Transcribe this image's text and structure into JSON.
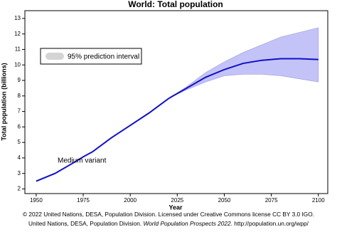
{
  "chart_data": {
    "type": "line",
    "title": "World: Total population",
    "x_label": "Year",
    "y_label": "Total population (billions)",
    "xlim": [
      1944,
      2105
    ],
    "xticks": [
      1950,
      1975,
      2000,
      2025,
      2050,
      2075,
      2100
    ],
    "ylim": [
      1.7,
      13.5
    ],
    "yticks": [
      2,
      3,
      4,
      5,
      6,
      7,
      8,
      9,
      10,
      11,
      12,
      13
    ],
    "x": [
      1950,
      1960,
      1970,
      1975,
      1980,
      1990,
      2000,
      2010,
      2020,
      2022,
      2030,
      2040,
      2050,
      2060,
      2070,
      2080,
      2086,
      2090,
      2100
    ],
    "series": [
      {
        "name": "Medium variant",
        "color": "#1010c8",
        "values": [
          2.5,
          3.0,
          3.7,
          4.07,
          4.4,
          5.3,
          6.1,
          6.9,
          7.8,
          7.95,
          8.5,
          9.2,
          9.7,
          10.1,
          10.3,
          10.4,
          10.4,
          10.4,
          10.35
        ]
      }
    ],
    "band": {
      "name": "95% prediction interval",
      "color": "#b4b4f5",
      "x": [
        2022,
        2030,
        2040,
        2050,
        2060,
        2070,
        2080,
        2090,
        2100
      ],
      "lower": [
        7.95,
        8.4,
        8.9,
        9.3,
        9.4,
        9.4,
        9.3,
        9.1,
        8.9
      ],
      "upper": [
        7.95,
        8.6,
        9.5,
        10.2,
        10.8,
        11.3,
        11.8,
        12.1,
        12.4
      ]
    },
    "footer": {
      "line1": "© 2022 United Nations, DESA, Population Division. Licensed under Creative Commons license CC BY 3.0 IGO.",
      "line2a": "United Nations, DESA, Population Division. ",
      "line2b": "World Population Prospects 2022",
      "line2c": ". http://population.un.org/wpp/"
    }
  }
}
